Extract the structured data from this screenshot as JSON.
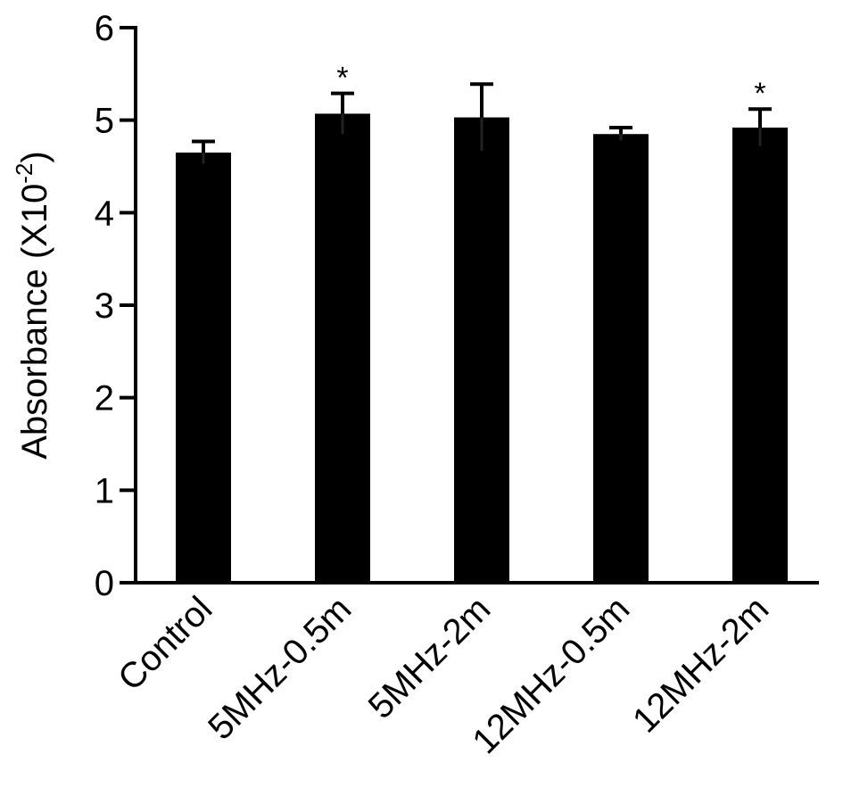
{
  "chart_data": {
    "type": "bar",
    "y_label_parts": [
      "Absorbance (X10",
      "-2",
      ")"
    ],
    "categories": [
      "Control",
      "5MHz-0.5m",
      "5MHz-2m",
      "12MHz-0.5m",
      "12MHz-2m"
    ],
    "values": [
      4.65,
      5.07,
      5.03,
      4.85,
      4.92
    ],
    "errors": [
      0.12,
      0.22,
      0.36,
      0.07,
      0.2
    ],
    "significance": [
      null,
      "*",
      null,
      null,
      "*"
    ],
    "color": "#000000",
    "ylim": [
      0,
      6
    ],
    "yticks": [
      0,
      1,
      2,
      3,
      4,
      5,
      6
    ],
    "grid": false
  }
}
